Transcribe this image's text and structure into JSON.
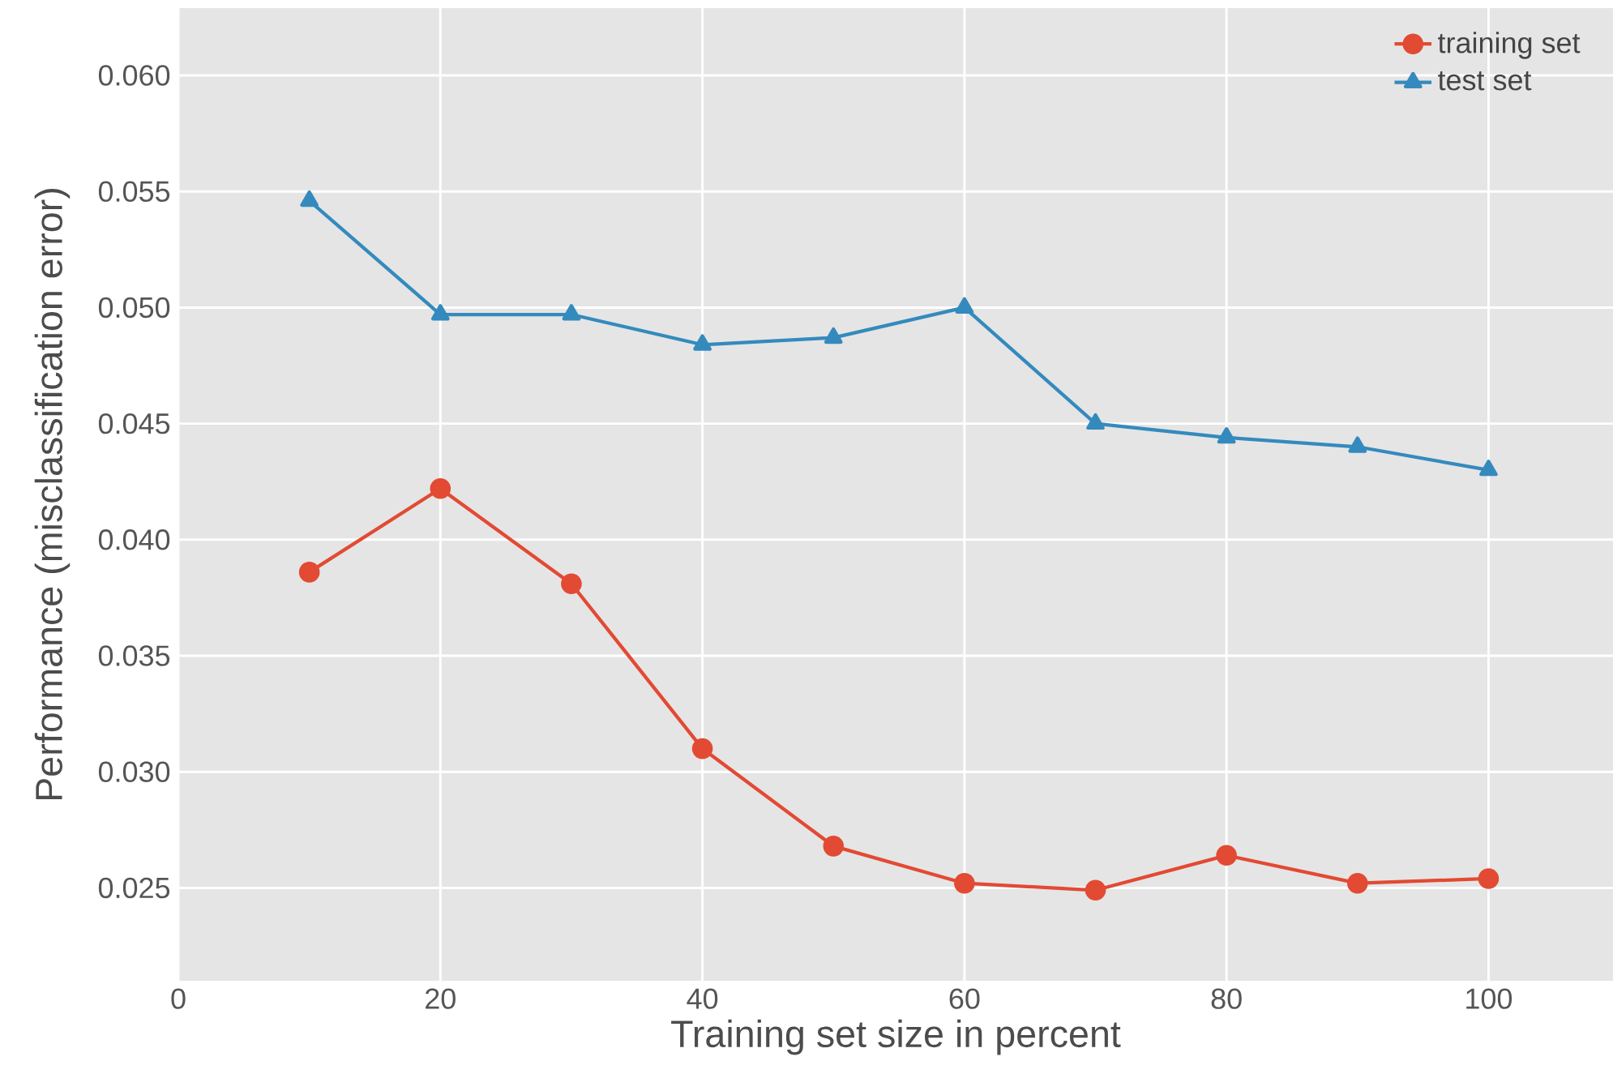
{
  "chart_data": {
    "type": "line",
    "xlabel": "Training set size in percent",
    "ylabel": "Performance (misclassification error)",
    "x": [
      10,
      20,
      30,
      40,
      50,
      60,
      70,
      80,
      90,
      100
    ],
    "series": [
      {
        "name": "training set",
        "color": "#e24a33",
        "marker": "circle",
        "values": [
          0.0386,
          0.0422,
          0.0381,
          0.031,
          0.0268,
          0.0252,
          0.0249,
          0.0264,
          0.0252,
          0.0254
        ]
      },
      {
        "name": "test set",
        "color": "#348abd",
        "marker": "triangle",
        "values": [
          0.0546,
          0.0497,
          0.0497,
          0.0484,
          0.0487,
          0.05,
          0.045,
          0.0444,
          0.044,
          0.043
        ]
      }
    ],
    "xlim": [
      0,
      109.5
    ],
    "ylim": [
      0.021,
      0.0629
    ],
    "xticks": [
      0,
      20,
      40,
      60,
      80,
      100
    ],
    "yticks": [
      {
        "value": 0.025,
        "label": "0.025"
      },
      {
        "value": 0.03,
        "label": "0.030"
      },
      {
        "value": 0.035,
        "label": "0.035"
      },
      {
        "value": 0.04,
        "label": "0.040"
      },
      {
        "value": 0.045,
        "label": "0.045"
      },
      {
        "value": 0.05,
        "label": "0.050"
      },
      {
        "value": 0.055,
        "label": "0.055"
      },
      {
        "value": 0.06,
        "label": "0.060"
      }
    ],
    "grid": true,
    "legend": "top right",
    "line_style": "solid"
  }
}
